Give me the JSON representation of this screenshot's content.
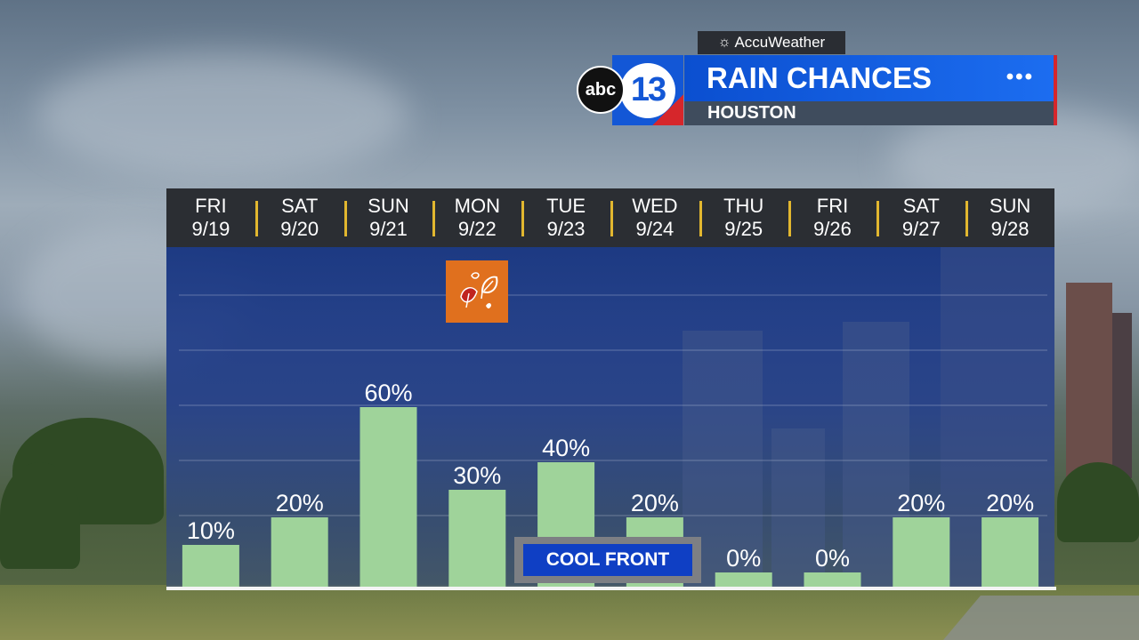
{
  "branding": {
    "provider": "AccuWeather",
    "network": "abc",
    "station": "13",
    "title": "RAIN CHANCES",
    "location": "HOUSTON",
    "menu_icon": "ellipsis-icon",
    "brand_color": "#1357d6",
    "accent_color": "#d6262b"
  },
  "annotation": {
    "label": "COOL FRONT",
    "icon": "autumn-leaves-icon",
    "icon_color": "#e0701e"
  },
  "chart_data": {
    "type": "bar",
    "title": "RAIN CHANCES",
    "categories": [
      "FRI 9/19",
      "SAT 9/20",
      "SUN 9/21",
      "MON 9/22",
      "TUE 9/23",
      "WED 9/24",
      "THU 9/25",
      "FRI 9/26",
      "SAT 9/27",
      "SUN 9/28"
    ],
    "days": [
      {
        "weekday": "FRI",
        "date": "9/19"
      },
      {
        "weekday": "SAT",
        "date": "9/20"
      },
      {
        "weekday": "SUN",
        "date": "9/21"
      },
      {
        "weekday": "MON",
        "date": "9/22"
      },
      {
        "weekday": "TUE",
        "date": "9/23"
      },
      {
        "weekday": "WED",
        "date": "9/24"
      },
      {
        "weekday": "THU",
        "date": "9/25"
      },
      {
        "weekday": "FRI",
        "date": "9/26"
      },
      {
        "weekday": "SAT",
        "date": "9/27"
      },
      {
        "weekday": "SUN",
        "date": "9/28"
      }
    ],
    "values": [
      10,
      20,
      60,
      30,
      40,
      20,
      0,
      0,
      20,
      20
    ],
    "labels": [
      "10%",
      "20%",
      "60%",
      "30%",
      "40%",
      "20%",
      "0%",
      "0%",
      "20%",
      "20%"
    ],
    "unit": "%",
    "ylim": [
      0,
      100
    ],
    "grid": true,
    "bar_color": "#9fd39a"
  }
}
